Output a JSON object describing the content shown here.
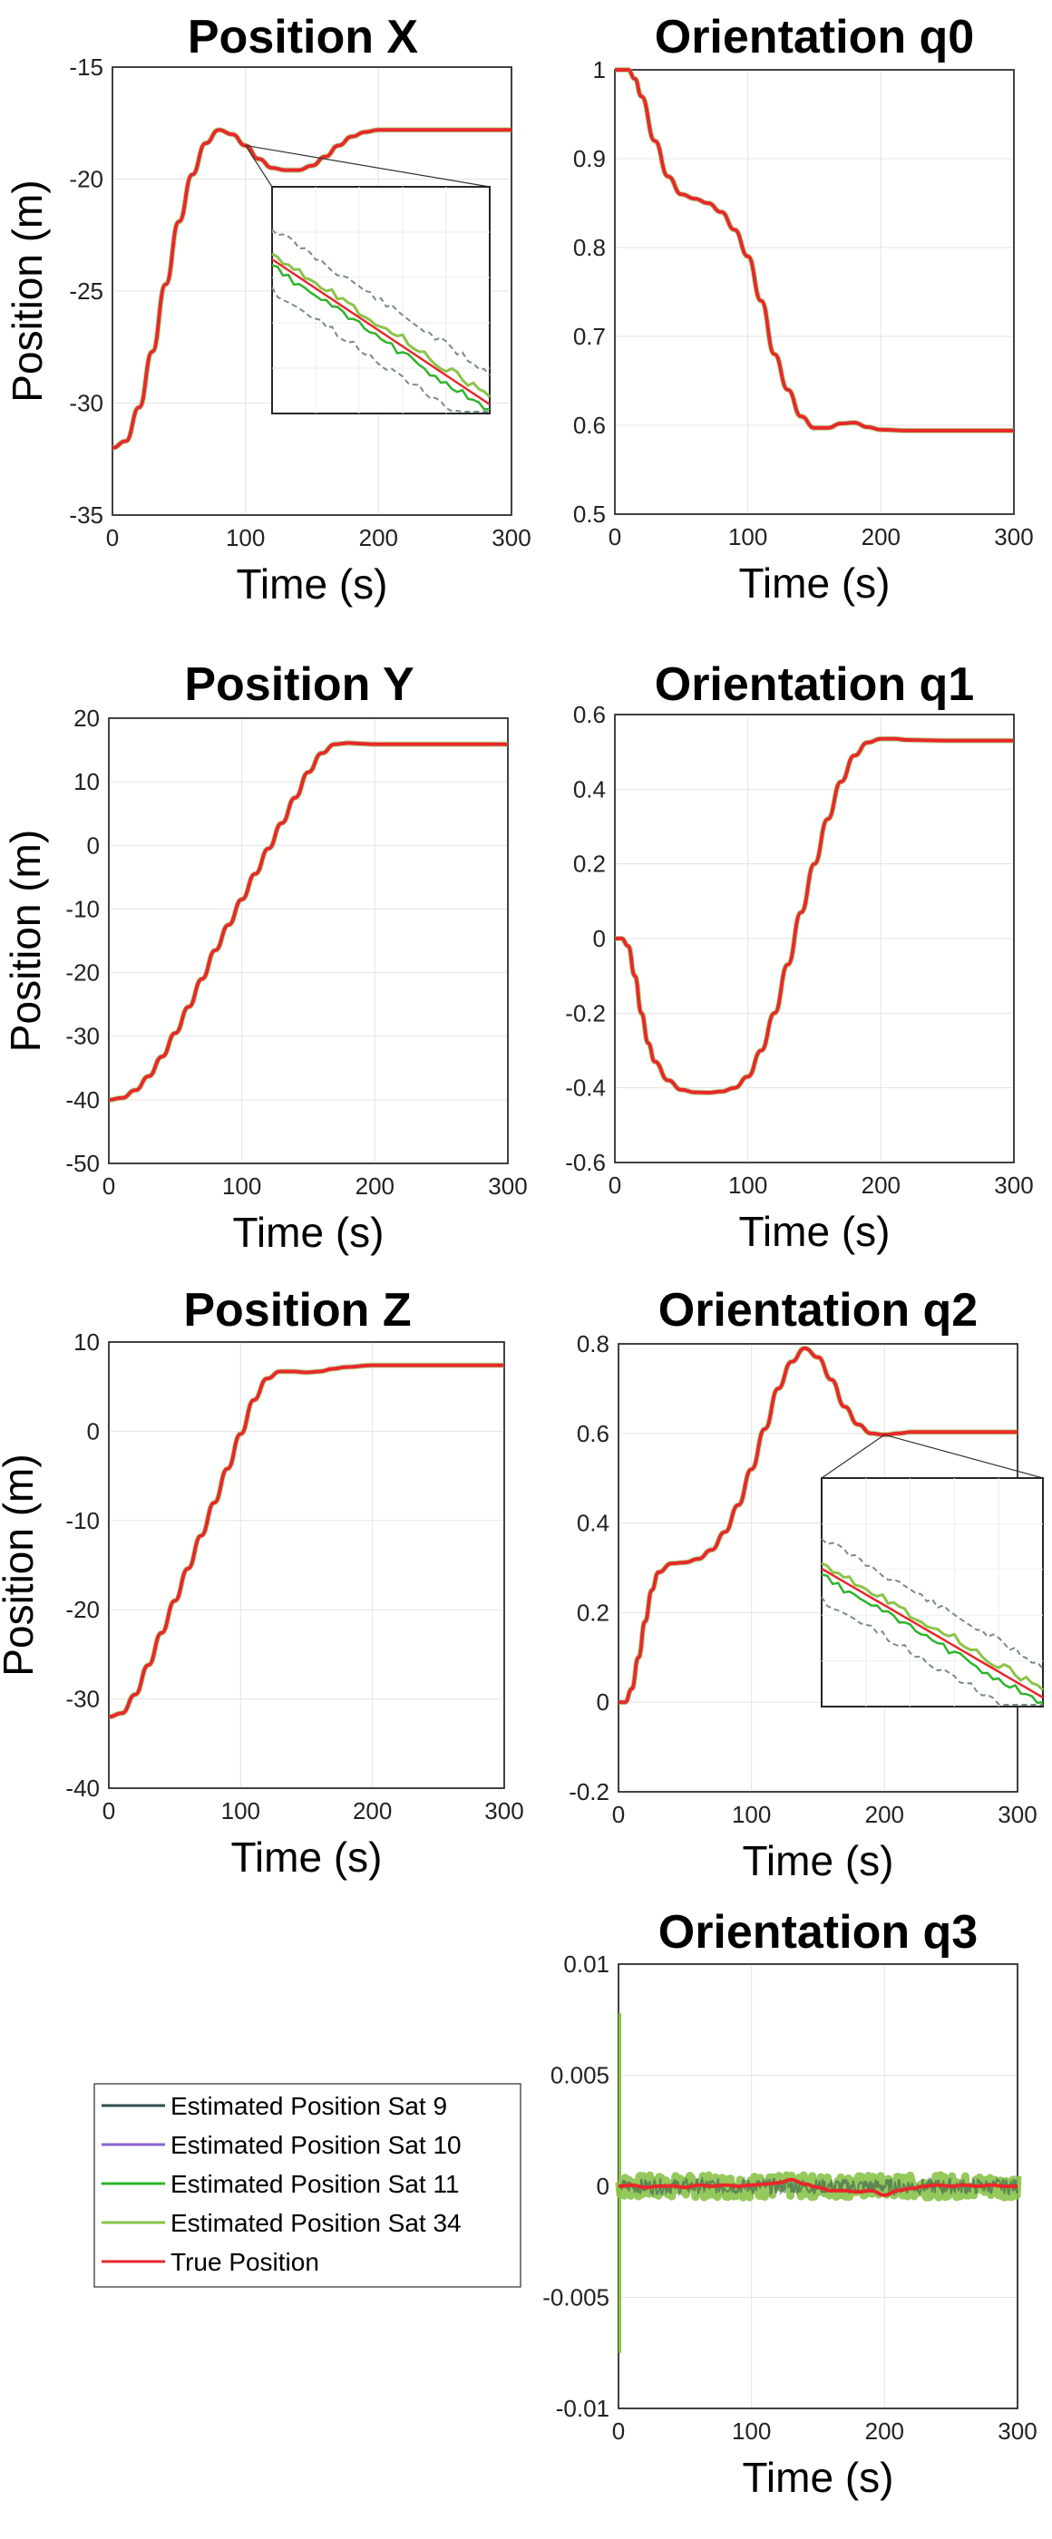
{
  "chart_data": [
    {
      "id": "pos-x",
      "type": "line",
      "title": "Position X",
      "xlabel": "Time (s)",
      "ylabel": "Position (m)",
      "xlim": [
        0,
        300
      ],
      "ylim": [
        -35,
        -15
      ],
      "xticks": [
        "0",
        "100",
        "200",
        "300"
      ],
      "yticks": [
        "-35",
        "-30",
        "-25",
        "-20",
        "-15"
      ],
      "grid": true,
      "inset": true,
      "series": [
        {
          "name": "True Position",
          "color": "#e8282b",
          "x": [
            0,
            10,
            20,
            30,
            40,
            50,
            60,
            70,
            80,
            90,
            100,
            110,
            120,
            130,
            140,
            150,
            160,
            170,
            180,
            190,
            200,
            220,
            240,
            260,
            280,
            300
          ],
          "y": [
            -32,
            -31.7,
            -30.2,
            -27.7,
            -24.7,
            -21.9,
            -19.8,
            -18.4,
            -17.8,
            -18.0,
            -18.5,
            -19.1,
            -19.5,
            -19.6,
            -19.6,
            -19.4,
            -19.0,
            -18.5,
            -18.1,
            -17.9,
            -17.8,
            -17.8,
            -17.8,
            -17.8,
            -17.8,
            -17.8
          ]
        }
      ]
    },
    {
      "id": "ori-q0",
      "type": "line",
      "title": "Orientation q0",
      "xlabel": "Time (s)",
      "ylabel": "",
      "xlim": [
        0,
        300
      ],
      "ylim": [
        0.5,
        1
      ],
      "xticks": [
        "0",
        "100",
        "200",
        "300"
      ],
      "yticks": [
        "0.5",
        "0.6",
        "0.7",
        "0.8",
        "0.9",
        "1"
      ],
      "grid": true,
      "inset": false,
      "series": [
        {
          "name": "True Position",
          "color": "#e8282b",
          "x": [
            0,
            10,
            15,
            20,
            30,
            40,
            50,
            60,
            70,
            80,
            90,
            100,
            110,
            120,
            130,
            140,
            150,
            160,
            170,
            180,
            190,
            200,
            220,
            240,
            260,
            280,
            300
          ],
          "y": [
            1.0,
            1.0,
            0.99,
            0.97,
            0.92,
            0.88,
            0.86,
            0.855,
            0.85,
            0.84,
            0.82,
            0.79,
            0.74,
            0.68,
            0.64,
            0.61,
            0.597,
            0.597,
            0.602,
            0.603,
            0.598,
            0.595,
            0.594,
            0.594,
            0.594,
            0.594,
            0.594
          ]
        }
      ]
    },
    {
      "id": "pos-y",
      "type": "line",
      "title": "Position Y",
      "xlabel": "Time (s)",
      "ylabel": "Position (m)",
      "xlim": [
        0,
        300
      ],
      "ylim": [
        -50,
        20
      ],
      "xticks": [
        "0",
        "100",
        "200",
        "300"
      ],
      "yticks": [
        "-50",
        "-40",
        "-30",
        "-20",
        "-10",
        "0",
        "10",
        "20"
      ],
      "grid": true,
      "inset": false,
      "series": [
        {
          "name": "True Position",
          "color": "#e8282b",
          "x": [
            0,
            10,
            20,
            30,
            40,
            50,
            60,
            70,
            80,
            90,
            100,
            110,
            120,
            130,
            140,
            150,
            160,
            170,
            180,
            190,
            200,
            250,
            300
          ],
          "y": [
            -40,
            -39.7,
            -38.5,
            -36.3,
            -33.2,
            -29.5,
            -25.4,
            -21.0,
            -16.5,
            -12.5,
            -8.5,
            -4.5,
            -0.5,
            3.5,
            7.5,
            11.5,
            14.5,
            15.9,
            16.1,
            16.0,
            15.9,
            15.9,
            15.9
          ]
        }
      ]
    },
    {
      "id": "ori-q1",
      "type": "line",
      "title": "Orientation q1",
      "xlabel": "Time (s)",
      "ylabel": "",
      "xlim": [
        0,
        300
      ],
      "ylim": [
        -0.6,
        0.6
      ],
      "xticks": [
        "0",
        "100",
        "200",
        "300"
      ],
      "yticks": [
        "-0.6",
        "-0.4",
        "-0.2",
        "0",
        "0.2",
        "0.4",
        "0.6"
      ],
      "grid": true,
      "inset": false,
      "series": [
        {
          "name": "True Position",
          "color": "#e8282b",
          "x": [
            0,
            5,
            10,
            15,
            20,
            25,
            30,
            40,
            50,
            60,
            70,
            80,
            90,
            100,
            110,
            120,
            130,
            140,
            150,
            160,
            170,
            180,
            190,
            200,
            210,
            220,
            250,
            300
          ],
          "y": [
            0,
            0,
            -0.02,
            -0.1,
            -0.2,
            -0.28,
            -0.33,
            -0.38,
            -0.405,
            -0.412,
            -0.413,
            -0.41,
            -0.4,
            -0.37,
            -0.3,
            -0.2,
            -0.07,
            0.07,
            0.2,
            0.32,
            0.42,
            0.49,
            0.525,
            0.535,
            0.535,
            0.532,
            0.53,
            0.53
          ]
        }
      ]
    },
    {
      "id": "pos-z",
      "type": "line",
      "title": "Position Z",
      "xlabel": "Time (s)",
      "ylabel": "Position (m)",
      "xlim": [
        0,
        300
      ],
      "ylim": [
        -40,
        10
      ],
      "xticks": [
        "0",
        "100",
        "200",
        "300"
      ],
      "yticks": [
        "-40",
        "-30",
        "-20",
        "-10",
        "0",
        "10"
      ],
      "grid": true,
      "inset": false,
      "series": [
        {
          "name": "True Position",
          "color": "#e8282b",
          "x": [
            0,
            10,
            20,
            30,
            40,
            50,
            60,
            70,
            80,
            90,
            100,
            110,
            120,
            130,
            140,
            150,
            160,
            170,
            180,
            200,
            250,
            300
          ],
          "y": [
            -32,
            -31.6,
            -29.5,
            -26.2,
            -22.6,
            -19.0,
            -15.4,
            -11.7,
            -8.0,
            -4.2,
            -0.3,
            3.5,
            5.9,
            6.7,
            6.7,
            6.6,
            6.7,
            7.0,
            7.2,
            7.4,
            7.4,
            7.4
          ]
        }
      ]
    },
    {
      "id": "ori-q2",
      "type": "line",
      "title": "Orientation q2",
      "xlabel": "Time (s)",
      "ylabel": "",
      "xlim": [
        0,
        300
      ],
      "ylim": [
        -0.2,
        0.8
      ],
      "xticks": [
        "0",
        "100",
        "200",
        "300"
      ],
      "yticks": [
        "-0.2",
        "0",
        "0.2",
        "0.4",
        "0.6",
        "0.8"
      ],
      "grid": true,
      "inset": true,
      "series": [
        {
          "name": "True Position",
          "color": "#e8282b",
          "x": [
            0,
            5,
            10,
            15,
            20,
            25,
            30,
            40,
            50,
            60,
            70,
            80,
            90,
            100,
            110,
            120,
            130,
            140,
            150,
            160,
            170,
            180,
            190,
            200,
            210,
            220,
            250,
            300
          ],
          "y": [
            0,
            0,
            0.03,
            0.1,
            0.18,
            0.25,
            0.29,
            0.31,
            0.312,
            0.32,
            0.34,
            0.38,
            0.44,
            0.52,
            0.61,
            0.7,
            0.76,
            0.79,
            0.77,
            0.72,
            0.66,
            0.62,
            0.6,
            0.597,
            0.6,
            0.603,
            0.603,
            0.603
          ]
        }
      ]
    },
    {
      "id": "ori-q3",
      "type": "line",
      "title": "Orientation q3",
      "xlabel": "Time (s)",
      "ylabel": "",
      "xlim": [
        0,
        300
      ],
      "ylim": [
        -0.01,
        0.01
      ],
      "xticks": [
        "0",
        "100",
        "200",
        "300"
      ],
      "yticks": [
        "-0.01",
        "-0.005",
        "0",
        "0.005",
        "0.01"
      ],
      "grid": true,
      "inset": false,
      "noisy_band": {
        "color": "#8bc34a",
        "amplitude": 0.0005,
        "spike_max": 0.0078,
        "spike_min": -0.0075
      },
      "series": [
        {
          "name": "True Position",
          "color": "#e8282b",
          "x": [
            0,
            10,
            20,
            30,
            40,
            50,
            60,
            70,
            80,
            90,
            100,
            110,
            120,
            130,
            140,
            150,
            160,
            170,
            180,
            190,
            200,
            210,
            220,
            230,
            240,
            250,
            260,
            270,
            280,
            290,
            300
          ],
          "y": [
            0,
            5e-05,
            -5e-05,
            0,
            2e-05,
            -5e-05,
            5e-05,
            0,
            5e-05,
            0,
            5e-05,
            0.0001,
            0.00015,
            0.0003,
            0.0001,
            -5e-05,
            -0.0002,
            -0.0002,
            -0.00025,
            -0.0002,
            -0.0004,
            -0.0002,
            -0.0001,
            0,
            5e-05,
            0,
            5e-05,
            0,
            5e-05,
            0,
            0
          ]
        }
      ]
    }
  ],
  "legend": {
    "items": [
      {
        "label": "Estimated Position Sat 9",
        "color": "#2f4f4f"
      },
      {
        "label": "Estimated Position Sat 10",
        "color": "#8a63c9"
      },
      {
        "label": "Estimated Position Sat 11",
        "color": "#2db42d"
      },
      {
        "label": "Estimated Position Sat 34",
        "color": "#8bc34a"
      },
      {
        "label": "True Position",
        "color": "#e8282b"
      }
    ]
  }
}
